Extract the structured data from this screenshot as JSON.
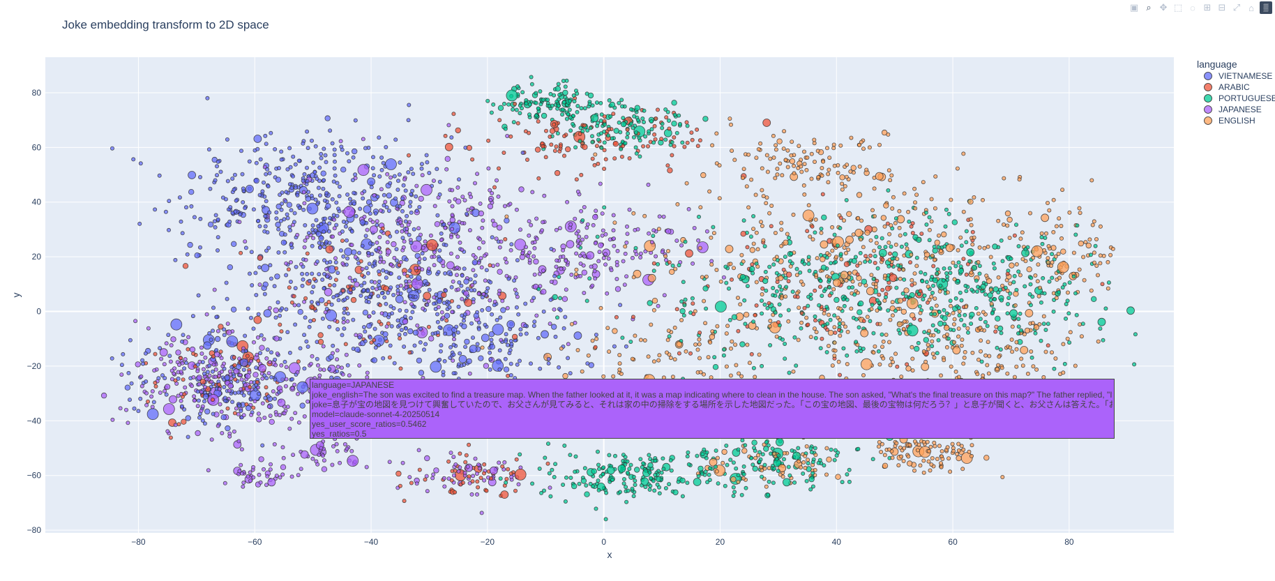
{
  "toolbar": {
    "icons": [
      "camera-icon",
      "zoom-icon",
      "pan-icon",
      "box-select-icon",
      "lasso-icon",
      "zoom-in-icon",
      "zoom-out-icon",
      "autoscale-icon",
      "home-icon",
      "plotly-logo-icon"
    ]
  },
  "chart_data": {
    "type": "scatter",
    "title": "Joke embedding transform to 2D space",
    "xlabel": "x",
    "ylabel": "y",
    "xlim": [
      -96,
      98
    ],
    "ylim": [
      -81,
      93
    ],
    "xticks": [
      -80,
      -60,
      -40,
      -20,
      0,
      20,
      40,
      60,
      80
    ],
    "yticks": [
      -80,
      -60,
      -40,
      -20,
      0,
      20,
      40,
      60,
      80
    ],
    "grid": true,
    "legend": {
      "title": "language",
      "placement": "top-right outside",
      "entries": [
        "VIETNAMESE",
        "ARABIC",
        "PORTUGUESE",
        "JAPANESE",
        "ENGLISH"
      ]
    },
    "colors": {
      "VIETNAMESE": "#636efa",
      "ARABIC": "#ef553b",
      "PORTUGUESE": "#00cc96",
      "JAPANESE": "#ab63fa",
      "ENGLISH": "#ffa15a"
    },
    "clusters": [
      {
        "lang": "VIETNAMESE",
        "cx": -50,
        "cy": 42,
        "sx": 12,
        "sy": 12,
        "n": 420
      },
      {
        "lang": "VIETNAMESE",
        "cx": -38,
        "cy": 5,
        "sx": 14,
        "sy": 14,
        "n": 380
      },
      {
        "lang": "VIETNAMESE",
        "cx": -65,
        "cy": -25,
        "sx": 8,
        "sy": 9,
        "n": 180
      },
      {
        "lang": "VIETNAMESE",
        "cx": -22,
        "cy": -12,
        "sx": 9,
        "sy": 10,
        "n": 160
      },
      {
        "lang": "JAPANESE",
        "cx": -28,
        "cy": 25,
        "sx": 15,
        "sy": 15,
        "n": 360
      },
      {
        "lang": "JAPANESE",
        "cx": -68,
        "cy": -25,
        "sx": 8,
        "sy": 9,
        "n": 180
      },
      {
        "lang": "JAPANESE",
        "cx": -50,
        "cy": -30,
        "sx": 12,
        "sy": 10,
        "n": 150
      },
      {
        "lang": "JAPANESE",
        "cx": -2,
        "cy": 22,
        "sx": 8,
        "sy": 8,
        "n": 140
      },
      {
        "lang": "JAPANESE",
        "cx": -60,
        "cy": -60,
        "sx": 3,
        "sy": 2,
        "n": 35
      },
      {
        "lang": "JAPANESE",
        "cx": -48,
        "cy": -53,
        "sx": 4,
        "sy": 3,
        "n": 40
      },
      {
        "lang": "JAPANESE",
        "cx": -22,
        "cy": -60,
        "sx": 5,
        "sy": 4,
        "n": 60
      },
      {
        "lang": "ARABIC",
        "cx": -22,
        "cy": -60,
        "sx": 5,
        "sy": 4,
        "n": 50
      },
      {
        "lang": "ARABIC",
        "cx": -2,
        "cy": 62,
        "sx": 10,
        "sy": 6,
        "n": 120
      },
      {
        "lang": "ARABIC",
        "cx": -40,
        "cy": 5,
        "sx": 12,
        "sy": 12,
        "n": 90
      },
      {
        "lang": "ARABIC",
        "cx": 40,
        "cy": 5,
        "sx": 15,
        "sy": 14,
        "n": 120
      },
      {
        "lang": "ARABIC",
        "cx": -65,
        "cy": -25,
        "sx": 7,
        "sy": 8,
        "n": 60
      },
      {
        "lang": "PORTUGUESE",
        "cx": -10,
        "cy": 76,
        "sx": 4,
        "sy": 4,
        "n": 110
      },
      {
        "lang": "PORTUGUESE",
        "cx": 3,
        "cy": 68,
        "sx": 6,
        "sy": 5,
        "n": 130
      },
      {
        "lang": "PORTUGUESE",
        "cx": 45,
        "cy": 8,
        "sx": 18,
        "sy": 14,
        "n": 420
      },
      {
        "lang": "PORTUGUESE",
        "cx": 5,
        "cy": -60,
        "sx": 8,
        "sy": 5,
        "n": 180
      },
      {
        "lang": "PORTUGUESE",
        "cx": 30,
        "cy": -55,
        "sx": 7,
        "sy": 5,
        "n": 130
      },
      {
        "lang": "PORTUGUESE",
        "cx": 70,
        "cy": 5,
        "sx": 10,
        "sy": 10,
        "n": 120
      },
      {
        "lang": "ENGLISH",
        "cx": 45,
        "cy": 20,
        "sx": 18,
        "sy": 16,
        "n": 380
      },
      {
        "lang": "ENGLISH",
        "cx": 35,
        "cy": 55,
        "sx": 8,
        "sy": 6,
        "n": 110
      },
      {
        "lang": "ENGLISH",
        "cx": 60,
        "cy": -15,
        "sx": 12,
        "sy": 10,
        "n": 200
      },
      {
        "lang": "ENGLISH",
        "cx": 55,
        "cy": -52,
        "sx": 5,
        "sy": 3,
        "n": 90
      },
      {
        "lang": "ENGLISH",
        "cx": 80,
        "cy": 20,
        "sx": 5,
        "sy": 8,
        "n": 70
      },
      {
        "lang": "ENGLISH",
        "cx": 10,
        "cy": -15,
        "sx": 10,
        "sy": 8,
        "n": 90
      },
      {
        "lang": "ENGLISH",
        "cx": 30,
        "cy": -55,
        "sx": 6,
        "sy": 4,
        "n": 60
      }
    ]
  },
  "hover": {
    "lines": [
      "language=JAPANESE",
      "joke_english=The son was excited to find a treasure map. When the father looked at it, it was a map indicating where to clean in the house. The son asked, \"What's the final treasure on this map?\" The father replied, \"It's your mother's smile.\"",
      "joke=息子が宝の地図を見つけて興奮していたので、お父さんが見てみると、それは家の中の掃除をする場所を示した地図だった。「この宝の地図、最後の宝物は何だろう？」と息子が聞くと、お父さんは答えた。「お母さんの笑顔だよ」",
      "model=claude-sonnet-4-20250514",
      "yes_user_score_ratios=0.5462",
      "yes_ratios=0.5"
    ]
  }
}
